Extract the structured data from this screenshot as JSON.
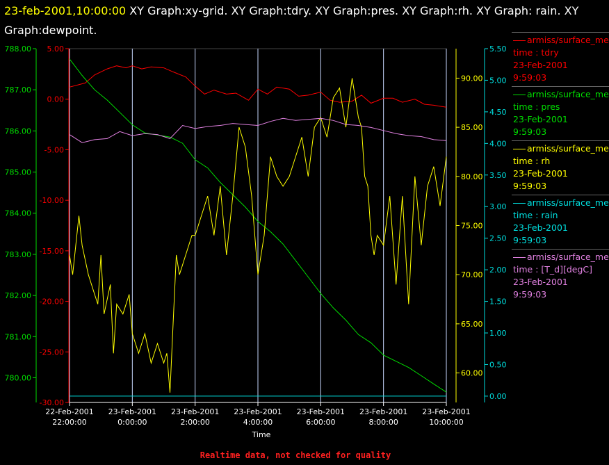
{
  "header": {
    "timestamp": "23-feb-2001,10:00:00",
    "title_rest": " XY Graph:xy-grid.  XY Graph:tdry.  XY Graph:pres.  XY Graph:rh.  XY Graph: rain.  XY Graph:dewpoint."
  },
  "colors": {
    "tdry": "#ff0000",
    "pres": "#00dd00",
    "rh": "#ffff00",
    "rain": "#00e0e0",
    "dewpoint": "#e080e0",
    "grid": "#c8d8ff"
  },
  "legend": [
    {
      "name": "armiss/surface_me",
      "line2": "time : tdry",
      "line3": "23-Feb-2001",
      "line4": "9:59:03",
      "color": "#ff0000"
    },
    {
      "name": "armiss/surface_me",
      "line2": "time : pres",
      "line3": "23-Feb-2001",
      "line4": "9:59:03",
      "color": "#00dd00"
    },
    {
      "name": "armiss/surface_me",
      "line2": "time : rh",
      "line3": "23-Feb-2001",
      "line4": "9:59:03",
      "color": "#ffff00"
    },
    {
      "name": "armiss/surface_me",
      "line2": "time : rain",
      "line3": "23-Feb-2001",
      "line4": "9:59:03",
      "color": "#00e0e0"
    },
    {
      "name": "armiss/surface_me",
      "line2": "time : [T_d][degC]",
      "line3": "23-Feb-2001",
      "line4": "9:59:03",
      "color": "#e080e0"
    }
  ],
  "footer": {
    "text": "Realtime data, not checked for quality",
    "color": "#ff2020"
  },
  "chart_data": {
    "type": "line",
    "xlabel": "Time",
    "xlim": [
      -2.0,
      10.0
    ],
    "x_ticks": [
      -2,
      0,
      2,
      4,
      6,
      8,
      10
    ],
    "x_tick_labels": [
      [
        "22-Feb-2001",
        "22:00:00"
      ],
      [
        "23-Feb-2001",
        "0:00:00"
      ],
      [
        "23-Feb-2001",
        "2:00:00"
      ],
      [
        "23-Feb-2001",
        "4:00:00"
      ],
      [
        "23-Feb-2001",
        "6:00:00"
      ],
      [
        "23-Feb-2001",
        "8:00:00"
      ],
      [
        "23-Feb-2001",
        "10:00:00"
      ]
    ],
    "grid": true,
    "axes": {
      "pres": {
        "range": [
          779.4,
          788.0
        ],
        "ticks": [
          "780.00",
          "781.00",
          "782.00",
          "783.00",
          "784.00",
          "785.00",
          "786.00",
          "787.00",
          "788.00"
        ],
        "tick_values": [
          780,
          781,
          782,
          783,
          784,
          785,
          786,
          787,
          788
        ]
      },
      "temp": {
        "range": [
          -30.0,
          5.0
        ],
        "ticks": [
          "-30.00",
          "-25.00",
          "-20.00",
          "-15.00",
          "-10.00",
          "-5.00",
          "0.00",
          "5.00"
        ],
        "tick_values": [
          -30,
          -25,
          -20,
          -15,
          -10,
          -5,
          0,
          5
        ]
      },
      "rh": {
        "range": [
          57.0,
          93.0
        ],
        "ticks": [
          "60.00",
          "65.00",
          "70.00",
          "75.00",
          "80.00",
          "85.00",
          "90.00"
        ],
        "tick_values": [
          60,
          65,
          70,
          75,
          80,
          85,
          90
        ]
      },
      "rain": {
        "range": [
          -0.1,
          5.5
        ],
        "ticks": [
          "0.00",
          "0.50",
          "1.00",
          "1.50",
          "2.00",
          "2.50",
          "3.00",
          "3.50",
          "4.00",
          "4.50",
          "5.00",
          "5.50"
        ],
        "tick_values": [
          0,
          0.5,
          1,
          1.5,
          2,
          2.5,
          3,
          3.5,
          4,
          4.5,
          5,
          5.5
        ]
      }
    },
    "series": [
      {
        "name": "tdry",
        "axis": "temp",
        "color": "#ff0000",
        "x": [
          -2.0,
          -1.5,
          -1.2,
          -0.8,
          -0.5,
          -0.2,
          0.0,
          0.3,
          0.6,
          1.0,
          1.3,
          1.7,
          2.0,
          2.3,
          2.6,
          3.0,
          3.3,
          3.7,
          4.0,
          4.3,
          4.6,
          5.0,
          5.3,
          5.6,
          6.0,
          6.3,
          6.6,
          7.0,
          7.3,
          7.6,
          8.0,
          8.3,
          8.6,
          9.0,
          9.3,
          9.6,
          10.0
        ],
        "y": [
          1.2,
          1.6,
          2.4,
          3.0,
          3.3,
          3.1,
          3.3,
          3.0,
          3.2,
          3.1,
          2.7,
          2.2,
          1.3,
          0.5,
          0.9,
          0.5,
          0.6,
          -0.1,
          1.0,
          0.5,
          1.2,
          1.0,
          0.3,
          0.4,
          0.7,
          -0.1,
          -0.3,
          -0.2,
          0.4,
          -0.4,
          0.1,
          0.1,
          -0.3,
          0.0,
          -0.5,
          -0.6,
          -0.8
        ]
      },
      {
        "name": "pres",
        "axis": "pres",
        "color": "#00dd00",
        "x": [
          -2.0,
          -1.6,
          -1.2,
          -0.8,
          -0.4,
          0.0,
          0.4,
          0.8,
          1.2,
          1.6,
          2.0,
          2.4,
          2.8,
          3.2,
          3.6,
          4.0,
          4.4,
          4.8,
          5.2,
          5.6,
          6.0,
          6.4,
          6.8,
          7.2,
          7.6,
          8.0,
          8.4,
          8.8,
          9.2,
          9.6,
          10.0
        ],
        "y": [
          787.75,
          787.35,
          787.0,
          786.75,
          786.45,
          786.15,
          785.95,
          785.9,
          785.85,
          785.7,
          785.3,
          785.1,
          784.75,
          784.45,
          784.15,
          783.8,
          783.55,
          783.25,
          782.85,
          782.45,
          782.05,
          781.7,
          781.4,
          781.05,
          780.85,
          780.55,
          780.4,
          780.25,
          780.05,
          779.85,
          779.65
        ]
      },
      {
        "name": "rh",
        "axis": "rh",
        "color": "#ffff00",
        "x": [
          -2.0,
          -1.9,
          -1.7,
          -1.6,
          -1.4,
          -1.2,
          -1.1,
          -1.0,
          -0.9,
          -0.7,
          -0.6,
          -0.5,
          -0.3,
          -0.1,
          0.0,
          0.2,
          0.4,
          0.6,
          0.8,
          1.0,
          1.1,
          1.2,
          1.3,
          1.4,
          1.5,
          1.7,
          1.9,
          2.0,
          2.2,
          2.4,
          2.6,
          2.8,
          3.0,
          3.2,
          3.4,
          3.6,
          3.8,
          4.0,
          4.2,
          4.4,
          4.6,
          4.8,
          5.0,
          5.2,
          5.4,
          5.6,
          5.8,
          6.0,
          6.2,
          6.4,
          6.6,
          6.8,
          7.0,
          7.2,
          7.3,
          7.4,
          7.5,
          7.6,
          7.7,
          7.8,
          8.0,
          8.2,
          8.4,
          8.6,
          8.8,
          9.0,
          9.2,
          9.4,
          9.6,
          9.8,
          10.0
        ],
        "y": [
          72,
          70,
          76,
          73,
          70,
          68,
          67,
          72,
          66,
          69,
          62,
          67,
          66,
          68,
          64,
          62,
          64,
          61,
          63,
          61,
          62,
          58,
          65,
          72,
          70,
          72,
          74,
          74,
          76,
          78,
          74,
          79,
          72,
          78,
          85,
          83,
          78,
          70,
          74,
          82,
          80,
          79,
          80,
          82,
          84,
          80,
          85,
          86,
          84,
          88,
          89,
          85,
          90,
          86,
          85,
          80,
          79,
          74,
          72,
          74,
          73,
          78,
          69,
          78,
          67,
          80,
          73,
          79,
          81,
          77,
          82
        ]
      },
      {
        "name": "rain",
        "axis": "rain",
        "color": "#00e0e0",
        "x": [
          -2.0,
          10.0
        ],
        "y": [
          0.0,
          0.0
        ]
      },
      {
        "name": "[T_d][degC]",
        "axis": "temp",
        "color": "#e080e0",
        "x": [
          -2.0,
          -1.6,
          -1.2,
          -0.8,
          -0.4,
          0.0,
          0.4,
          0.8,
          1.2,
          1.6,
          2.0,
          2.4,
          2.8,
          3.2,
          3.6,
          4.0,
          4.4,
          4.8,
          5.2,
          5.6,
          6.0,
          6.4,
          6.8,
          7.2,
          7.6,
          8.0,
          8.4,
          8.8,
          9.2,
          9.6,
          10.0
        ],
        "y": [
          -3.5,
          -4.3,
          -4.0,
          -3.9,
          -3.2,
          -3.6,
          -3.4,
          -3.5,
          -3.9,
          -2.6,
          -2.9,
          -2.7,
          -2.6,
          -2.4,
          -2.5,
          -2.6,
          -2.2,
          -1.9,
          -2.1,
          -2.0,
          -1.9,
          -2.1,
          -2.5,
          -2.6,
          -2.8,
          -3.1,
          -3.4,
          -3.6,
          -3.7,
          -4.0,
          -4.1
        ]
      }
    ]
  }
}
